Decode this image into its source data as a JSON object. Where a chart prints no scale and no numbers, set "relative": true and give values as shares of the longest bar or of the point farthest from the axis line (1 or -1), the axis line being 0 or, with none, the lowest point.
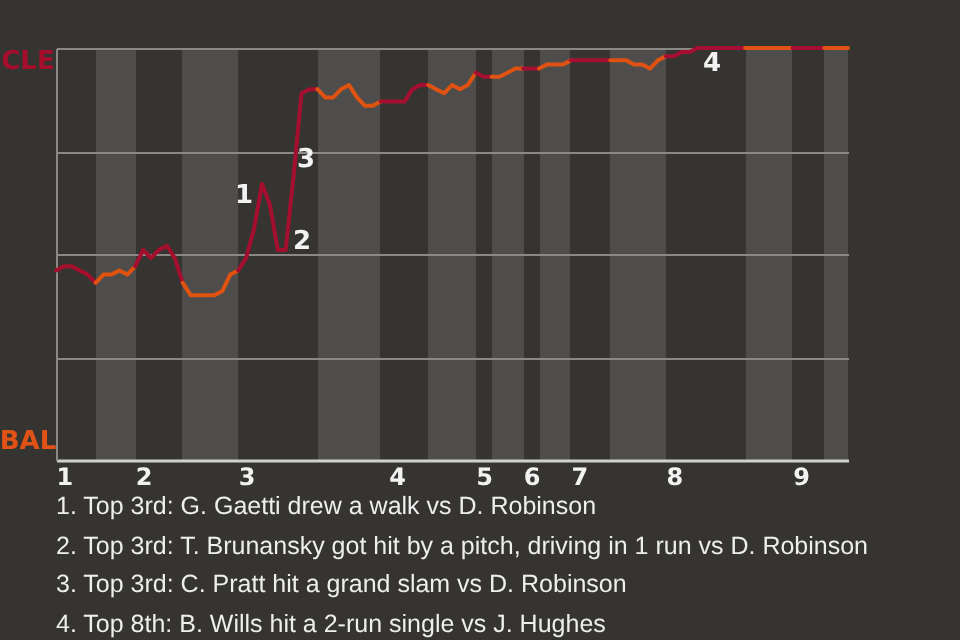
{
  "chart_data": {
    "type": "line",
    "relative": true,
    "categories": [
      null,
      "1",
      null,
      null,
      null,
      null,
      null,
      null,
      null,
      null,
      null,
      "2",
      null,
      null,
      null,
      null,
      null,
      null,
      null,
      null,
      null,
      null,
      null,
      null,
      "3",
      null,
      null,
      null,
      null,
      null,
      null,
      null,
      null,
      null,
      null,
      null,
      null,
      null,
      null,
      null,
      null,
      null,
      null,
      "4",
      null,
      null,
      null,
      null,
      null,
      null,
      null,
      null,
      null,
      null,
      "5",
      null,
      null,
      null,
      null,
      null,
      "6",
      null,
      null,
      null,
      null,
      null,
      "7",
      null,
      null,
      null,
      null,
      null,
      null,
      null,
      null,
      null,
      null,
      null,
      "8",
      null,
      null,
      null,
      null,
      null,
      null,
      null,
      null,
      null,
      null,
      null,
      null,
      null,
      null,
      null,
      "9",
      null,
      null,
      null,
      null,
      null,
      null
    ],
    "grid": "y",
    "line_style": "solid",
    "series": [
      {
        "color": "#a50f2d",
        "values": [
          0.46,
          0.47,
          0.47,
          0.46,
          0.45,
          0.43,
          null,
          null,
          null,
          null,
          null,
          null,
          null,
          null,
          null,
          null,
          null,
          null,
          null,
          null,
          null,
          null,
          null,
          null,
          null,
          null,
          null,
          null,
          null,
          null,
          null,
          null,
          null,
          null,
          null,
          null,
          null,
          null,
          null,
          null,
          null,
          null,
          null,
          null,
          null,
          null,
          null,
          null,
          null,
          null,
          null,
          null,
          null,
          null,
          null,
          null,
          null,
          null,
          null,
          null,
          null,
          null,
          null,
          null,
          null,
          null,
          null,
          null,
          null,
          null,
          null,
          null,
          null,
          null,
          null,
          null,
          null,
          null,
          null,
          null,
          null,
          null,
          null,
          null,
          null,
          null,
          null,
          null,
          null,
          null,
          null,
          null,
          null,
          null,
          null,
          null,
          null,
          null,
          null,
          null,
          null
        ]
      },
      {
        "color": "#e0520e",
        "values": [
          null,
          null,
          null,
          null,
          null,
          0.43,
          0.45,
          0.45,
          0.46,
          0.45,
          0.47,
          null,
          null,
          null,
          null,
          null,
          null,
          null,
          null,
          null,
          null,
          null,
          null,
          null,
          null,
          null,
          null,
          null,
          null,
          null,
          null,
          null,
          null,
          null,
          null,
          null,
          null,
          null,
          null,
          null,
          null,
          null,
          null,
          null,
          null,
          null,
          null,
          null,
          null,
          null,
          null,
          null,
          null,
          null,
          null,
          null,
          null,
          null,
          null,
          null,
          null,
          null,
          null,
          null,
          null,
          null,
          null,
          null,
          null,
          null,
          null,
          null,
          null,
          null,
          null,
          null,
          null,
          null,
          null,
          null,
          null,
          null,
          null,
          null,
          null,
          null,
          null,
          null,
          null,
          null,
          null,
          null,
          null,
          null,
          null,
          null,
          null,
          null,
          null,
          null,
          null
        ]
      },
      {
        "color": "#a50f2e",
        "values": [
          null,
          null,
          null,
          null,
          null,
          null,
          null,
          null,
          null,
          null,
          0.47,
          0.51,
          0.49,
          0.51,
          0.52,
          0.49,
          0.43,
          null,
          null,
          null,
          null,
          null,
          null,
          null,
          null,
          null,
          null,
          null,
          null,
          null,
          null,
          null,
          null,
          null,
          null,
          null,
          null,
          null,
          null,
          null,
          null,
          null,
          null,
          null,
          null,
          null,
          null,
          null,
          null,
          null,
          null,
          null,
          null,
          null,
          null,
          null,
          null,
          null,
          null,
          null,
          null,
          null,
          null,
          null,
          null,
          null,
          null,
          null,
          null,
          null,
          null,
          null,
          null,
          null,
          null,
          null,
          null,
          null,
          null,
          null,
          null,
          null,
          null,
          null,
          null,
          null,
          null,
          null,
          null,
          null,
          null,
          null,
          null,
          null,
          null,
          null,
          null,
          null,
          null,
          null,
          null
        ]
      },
      {
        "color": "#e0520f",
        "values": [
          null,
          null,
          null,
          null,
          null,
          null,
          null,
          null,
          null,
          null,
          null,
          null,
          null,
          null,
          null,
          null,
          0.43,
          0.4,
          0.4,
          0.4,
          0.4,
          0.41,
          0.45,
          0.46,
          null,
          null,
          null,
          null,
          null,
          null,
          null,
          null,
          null,
          null,
          null,
          null,
          null,
          null,
          null,
          null,
          null,
          null,
          null,
          null,
          null,
          null,
          null,
          null,
          null,
          null,
          null,
          null,
          null,
          null,
          null,
          null,
          null,
          null,
          null,
          null,
          null,
          null,
          null,
          null,
          null,
          null,
          null,
          null,
          null,
          null,
          null,
          null,
          null,
          null,
          null,
          null,
          null,
          null,
          null,
          null,
          null,
          null,
          null,
          null,
          null,
          null,
          null,
          null,
          null,
          null,
          null,
          null,
          null,
          null,
          null,
          null,
          null,
          null,
          null,
          null,
          null
        ]
      },
      {
        "color": "#a50f2f",
        "values": [
          null,
          null,
          null,
          null,
          null,
          null,
          null,
          null,
          null,
          null,
          null,
          null,
          null,
          null,
          null,
          null,
          null,
          null,
          null,
          null,
          null,
          null,
          null,
          0.46,
          0.49,
          0.56,
          0.67,
          0.62,
          0.51,
          0.51,
          0.69,
          0.89,
          0.9,
          0.9,
          null,
          null,
          null,
          null,
          null,
          null,
          null,
          null,
          null,
          null,
          null,
          null,
          null,
          null,
          null,
          null,
          null,
          null,
          null,
          null,
          null,
          null,
          null,
          null,
          null,
          null,
          null,
          null,
          null,
          null,
          null,
          null,
          null,
          null,
          null,
          null,
          null,
          null,
          null,
          null,
          null,
          null,
          null,
          null,
          null,
          null,
          null,
          null,
          null,
          null,
          null,
          null,
          null,
          null,
          null,
          null,
          null,
          null,
          null,
          null,
          null,
          null,
          null,
          null,
          null,
          null,
          null
        ]
      },
      {
        "color": "#e05210",
        "values": [
          null,
          null,
          null,
          null,
          null,
          null,
          null,
          null,
          null,
          null,
          null,
          null,
          null,
          null,
          null,
          null,
          null,
          null,
          null,
          null,
          null,
          null,
          null,
          null,
          null,
          null,
          null,
          null,
          null,
          null,
          null,
          null,
          null,
          0.9,
          0.88,
          0.88,
          0.9,
          0.91,
          0.88,
          0.86,
          0.86,
          0.87,
          null,
          null,
          null,
          null,
          null,
          null,
          null,
          null,
          null,
          null,
          null,
          null,
          null,
          null,
          null,
          null,
          null,
          null,
          null,
          null,
          null,
          null,
          null,
          null,
          null,
          null,
          null,
          null,
          null,
          null,
          null,
          null,
          null,
          null,
          null,
          null,
          null,
          null,
          null,
          null,
          null,
          null,
          null,
          null,
          null,
          null,
          null,
          null,
          null,
          null,
          null,
          null,
          null,
          null,
          null,
          null,
          null,
          null,
          null
        ]
      },
      {
        "color": "#a50f30",
        "values": [
          null,
          null,
          null,
          null,
          null,
          null,
          null,
          null,
          null,
          null,
          null,
          null,
          null,
          null,
          null,
          null,
          null,
          null,
          null,
          null,
          null,
          null,
          null,
          null,
          null,
          null,
          null,
          null,
          null,
          null,
          null,
          null,
          null,
          null,
          null,
          null,
          null,
          null,
          null,
          null,
          null,
          0.87,
          0.87,
          0.87,
          0.87,
          0.9,
          0.91,
          0.91,
          null,
          null,
          null,
          null,
          null,
          null,
          null,
          null,
          null,
          null,
          null,
          null,
          null,
          null,
          null,
          null,
          null,
          null,
          null,
          null,
          null,
          null,
          null,
          null,
          null,
          null,
          null,
          null,
          null,
          null,
          null,
          null,
          null,
          null,
          null,
          null,
          null,
          null,
          null,
          null,
          null,
          null,
          null,
          null,
          null,
          null,
          null,
          null,
          null,
          null,
          null,
          null,
          null
        ]
      },
      {
        "color": "#e05211",
        "values": [
          null,
          null,
          null,
          null,
          null,
          null,
          null,
          null,
          null,
          null,
          null,
          null,
          null,
          null,
          null,
          null,
          null,
          null,
          null,
          null,
          null,
          null,
          null,
          null,
          null,
          null,
          null,
          null,
          null,
          null,
          null,
          null,
          null,
          null,
          null,
          null,
          null,
          null,
          null,
          null,
          null,
          null,
          null,
          null,
          null,
          null,
          null,
          0.91,
          0.9,
          0.89,
          0.91,
          0.9,
          0.91,
          0.94,
          null,
          null,
          null,
          null,
          null,
          null,
          null,
          null,
          null,
          null,
          null,
          null,
          null,
          null,
          null,
          null,
          null,
          null,
          null,
          null,
          null,
          null,
          null,
          null,
          null,
          null,
          null,
          null,
          null,
          null,
          null,
          null,
          null,
          null,
          null,
          null,
          null,
          null,
          null,
          null,
          null,
          null,
          null,
          null,
          null,
          null,
          null
        ]
      },
      {
        "color": "#a50f31",
        "values": [
          null,
          null,
          null,
          null,
          null,
          null,
          null,
          null,
          null,
          null,
          null,
          null,
          null,
          null,
          null,
          null,
          null,
          null,
          null,
          null,
          null,
          null,
          null,
          null,
          null,
          null,
          null,
          null,
          null,
          null,
          null,
          null,
          null,
          null,
          null,
          null,
          null,
          null,
          null,
          null,
          null,
          null,
          null,
          null,
          null,
          null,
          null,
          null,
          null,
          null,
          null,
          null,
          null,
          0.94,
          0.93,
          0.93,
          null,
          null,
          null,
          null,
          null,
          null,
          null,
          null,
          null,
          null,
          null,
          null,
          null,
          null,
          null,
          null,
          null,
          null,
          null,
          null,
          null,
          null,
          null,
          null,
          null,
          null,
          null,
          null,
          null,
          null,
          null,
          null,
          null,
          null,
          null,
          null,
          null,
          null,
          null,
          null,
          null,
          null,
          null,
          null,
          null
        ]
      },
      {
        "color": "#e05212",
        "values": [
          null,
          null,
          null,
          null,
          null,
          null,
          null,
          null,
          null,
          null,
          null,
          null,
          null,
          null,
          null,
          null,
          null,
          null,
          null,
          null,
          null,
          null,
          null,
          null,
          null,
          null,
          null,
          null,
          null,
          null,
          null,
          null,
          null,
          null,
          null,
          null,
          null,
          null,
          null,
          null,
          null,
          null,
          null,
          null,
          null,
          null,
          null,
          null,
          null,
          null,
          null,
          null,
          null,
          null,
          null,
          0.93,
          0.93,
          0.94,
          0.95,
          0.95,
          null,
          null,
          null,
          null,
          null,
          null,
          null,
          null,
          null,
          null,
          null,
          null,
          null,
          null,
          null,
          null,
          null,
          null,
          null,
          null,
          null,
          null,
          null,
          null,
          null,
          null,
          null,
          null,
          null,
          null,
          null,
          null,
          null,
          null,
          null,
          null,
          null,
          null,
          null,
          null,
          null
        ]
      },
      {
        "color": "#a50f32",
        "values": [
          null,
          null,
          null,
          null,
          null,
          null,
          null,
          null,
          null,
          null,
          null,
          null,
          null,
          null,
          null,
          null,
          null,
          null,
          null,
          null,
          null,
          null,
          null,
          null,
          null,
          null,
          null,
          null,
          null,
          null,
          null,
          null,
          null,
          null,
          null,
          null,
          null,
          null,
          null,
          null,
          null,
          null,
          null,
          null,
          null,
          null,
          null,
          null,
          null,
          null,
          null,
          null,
          null,
          null,
          null,
          null,
          null,
          null,
          null,
          0.95,
          0.95,
          0.95,
          null,
          null,
          null,
          null,
          null,
          null,
          null,
          null,
          null,
          null,
          null,
          null,
          null,
          null,
          null,
          null,
          null,
          null,
          null,
          null,
          null,
          null,
          null,
          null,
          null,
          null,
          null,
          null,
          null,
          null,
          null,
          null,
          null,
          null,
          null,
          null,
          null,
          null,
          null
        ]
      },
      {
        "color": "#e05213",
        "values": [
          null,
          null,
          null,
          null,
          null,
          null,
          null,
          null,
          null,
          null,
          null,
          null,
          null,
          null,
          null,
          null,
          null,
          null,
          null,
          null,
          null,
          null,
          null,
          null,
          null,
          null,
          null,
          null,
          null,
          null,
          null,
          null,
          null,
          null,
          null,
          null,
          null,
          null,
          null,
          null,
          null,
          null,
          null,
          null,
          null,
          null,
          null,
          null,
          null,
          null,
          null,
          null,
          null,
          null,
          null,
          null,
          null,
          null,
          null,
          null,
          null,
          0.95,
          0.96,
          0.96,
          0.96,
          0.97,
          null,
          null,
          null,
          null,
          null,
          null,
          null,
          null,
          null,
          null,
          null,
          null,
          null,
          null,
          null,
          null,
          null,
          null,
          null,
          null,
          null,
          null,
          null,
          null,
          null,
          null,
          null,
          null,
          null,
          null,
          null,
          null,
          null,
          null,
          null
        ]
      },
      {
        "color": "#a50f33",
        "values": [
          null,
          null,
          null,
          null,
          null,
          null,
          null,
          null,
          null,
          null,
          null,
          null,
          null,
          null,
          null,
          null,
          null,
          null,
          null,
          null,
          null,
          null,
          null,
          null,
          null,
          null,
          null,
          null,
          null,
          null,
          null,
          null,
          null,
          null,
          null,
          null,
          null,
          null,
          null,
          null,
          null,
          null,
          null,
          null,
          null,
          null,
          null,
          null,
          null,
          null,
          null,
          null,
          null,
          null,
          null,
          null,
          null,
          null,
          null,
          null,
          null,
          null,
          null,
          null,
          null,
          0.97,
          0.97,
          0.97,
          0.97,
          0.97,
          0.97,
          null,
          null,
          null,
          null,
          null,
          null,
          null,
          null,
          null,
          null,
          null,
          null,
          null,
          null,
          null,
          null,
          null,
          null,
          null,
          null,
          null,
          null,
          null,
          null,
          null,
          null,
          null,
          null,
          null,
          null
        ]
      },
      {
        "color": "#e05214",
        "values": [
          null,
          null,
          null,
          null,
          null,
          null,
          null,
          null,
          null,
          null,
          null,
          null,
          null,
          null,
          null,
          null,
          null,
          null,
          null,
          null,
          null,
          null,
          null,
          null,
          null,
          null,
          null,
          null,
          null,
          null,
          null,
          null,
          null,
          null,
          null,
          null,
          null,
          null,
          null,
          null,
          null,
          null,
          null,
          null,
          null,
          null,
          null,
          null,
          null,
          null,
          null,
          null,
          null,
          null,
          null,
          null,
          null,
          null,
          null,
          null,
          null,
          null,
          null,
          null,
          null,
          null,
          null,
          null,
          null,
          null,
          0.97,
          0.97,
          0.97,
          0.96,
          0.96,
          0.95,
          0.97,
          0.98,
          null,
          null,
          null,
          null,
          null,
          null,
          null,
          null,
          null,
          null,
          null,
          null,
          null,
          null,
          null,
          null,
          null,
          null,
          null,
          null,
          null,
          null,
          null
        ]
      },
      {
        "color": "#a50f34",
        "values": [
          null,
          null,
          null,
          null,
          null,
          null,
          null,
          null,
          null,
          null,
          null,
          null,
          null,
          null,
          null,
          null,
          null,
          null,
          null,
          null,
          null,
          null,
          null,
          null,
          null,
          null,
          null,
          null,
          null,
          null,
          null,
          null,
          null,
          null,
          null,
          null,
          null,
          null,
          null,
          null,
          null,
          null,
          null,
          null,
          null,
          null,
          null,
          null,
          null,
          null,
          null,
          null,
          null,
          null,
          null,
          null,
          null,
          null,
          null,
          null,
          null,
          null,
          null,
          null,
          null,
          null,
          null,
          null,
          null,
          null,
          null,
          null,
          null,
          null,
          null,
          null,
          null,
          0.98,
          0.98,
          0.99,
          0.99,
          1,
          1,
          1,
          1,
          1,
          1,
          1,
          null,
          null,
          null,
          null,
          null,
          null,
          null,
          null,
          null,
          null,
          null,
          null,
          null
        ]
      },
      {
        "color": "#e05215",
        "values": [
          null,
          null,
          null,
          null,
          null,
          null,
          null,
          null,
          null,
          null,
          null,
          null,
          null,
          null,
          null,
          null,
          null,
          null,
          null,
          null,
          null,
          null,
          null,
          null,
          null,
          null,
          null,
          null,
          null,
          null,
          null,
          null,
          null,
          null,
          null,
          null,
          null,
          null,
          null,
          null,
          null,
          null,
          null,
          null,
          null,
          null,
          null,
          null,
          null,
          null,
          null,
          null,
          null,
          null,
          null,
          null,
          null,
          null,
          null,
          null,
          null,
          null,
          null,
          null,
          null,
          null,
          null,
          null,
          null,
          null,
          null,
          null,
          null,
          null,
          null,
          null,
          null,
          null,
          null,
          null,
          null,
          null,
          null,
          null,
          null,
          null,
          null,
          1,
          1,
          1,
          1,
          1,
          1,
          1,
          null,
          null,
          null,
          null,
          null,
          null,
          null
        ]
      },
      {
        "color": "#a50f35",
        "values": [
          null,
          null,
          null,
          null,
          null,
          null,
          null,
          null,
          null,
          null,
          null,
          null,
          null,
          null,
          null,
          null,
          null,
          null,
          null,
          null,
          null,
          null,
          null,
          null,
          null,
          null,
          null,
          null,
          null,
          null,
          null,
          null,
          null,
          null,
          null,
          null,
          null,
          null,
          null,
          null,
          null,
          null,
          null,
          null,
          null,
          null,
          null,
          null,
          null,
          null,
          null,
          null,
          null,
          null,
          null,
          null,
          null,
          null,
          null,
          null,
          null,
          null,
          null,
          null,
          null,
          null,
          null,
          null,
          null,
          null,
          null,
          null,
          null,
          null,
          null,
          null,
          null,
          null,
          null,
          null,
          null,
          null,
          null,
          null,
          null,
          null,
          null,
          null,
          null,
          null,
          null,
          null,
          null,
          1,
          1,
          1,
          1,
          1,
          null,
          null,
          null
        ]
      },
      {
        "color": "#e05216",
        "values": [
          null,
          null,
          null,
          null,
          null,
          null,
          null,
          null,
          null,
          null,
          null,
          null,
          null,
          null,
          null,
          null,
          null,
          null,
          null,
          null,
          null,
          null,
          null,
          null,
          null,
          null,
          null,
          null,
          null,
          null,
          null,
          null,
          null,
          null,
          null,
          null,
          null,
          null,
          null,
          null,
          null,
          null,
          null,
          null,
          null,
          null,
          null,
          null,
          null,
          null,
          null,
          null,
          null,
          null,
          null,
          null,
          null,
          null,
          null,
          null,
          null,
          null,
          null,
          null,
          null,
          null,
          null,
          null,
          null,
          null,
          null,
          null,
          null,
          null,
          null,
          null,
          null,
          null,
          null,
          null,
          null,
          null,
          null,
          null,
          null,
          null,
          null,
          null,
          null,
          null,
          null,
          null,
          null,
          null,
          null,
          null,
          null,
          1,
          1,
          1,
          1
        ]
      }
    ],
    "annotations": [
      "CLE",
      "BAL",
      "1",
      "2",
      "3",
      "4",
      "1. Top 3rd: G. Gaetti drew a walk vs D. Robinson",
      "2. Top 3rd: T. Brunansky got hit by a pitch, driving in 1 run vs D. Robinson",
      "3. Top 3rd: C. Pratt hit a grand slam vs D. Robinson",
      "4. Top 8th: B. Wills hit a 2-run single vs J. Hughes"
    ]
  }
}
